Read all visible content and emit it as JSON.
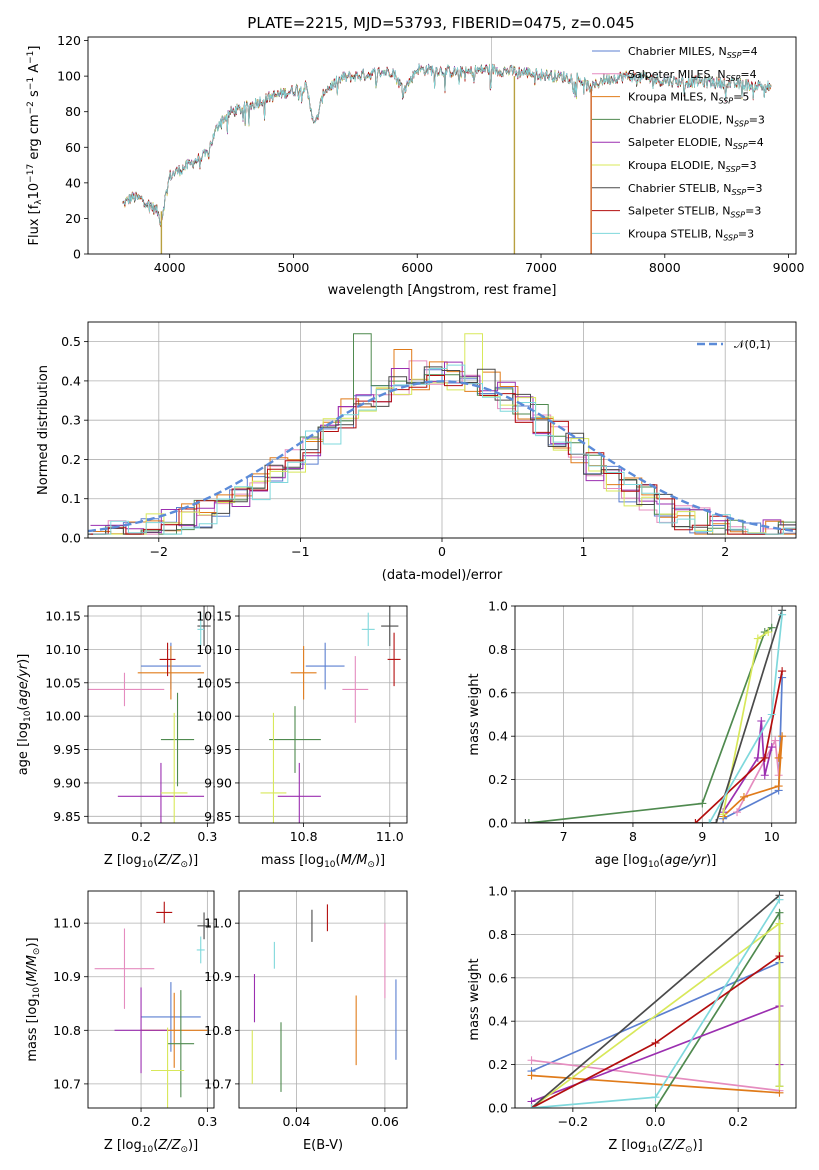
{
  "figure": {
    "title": "PLATE=2215, MJD=53793, FIBERID=0475, z=0.045"
  },
  "colors": {
    "series": [
      "#5b7fd0",
      "#e58cbf",
      "#e07b1a",
      "#4f8a4f",
      "#9b2fb0",
      "#d8e85a",
      "#4a4a4a",
      "#b30e0e",
      "#7fd8dc"
    ],
    "normal": "#5b8bd8",
    "grid": "#b0b0b0"
  },
  "legend_spectrum": [
    {
      "name": "Chabrier MILES, N",
      "sub": "SSP",
      "tail": "=4"
    },
    {
      "name": "Salpeter MILES, N",
      "sub": "SSP",
      "tail": "=4"
    },
    {
      "name": "Kroupa MILES, N",
      "sub": "SSP",
      "tail": "=5"
    },
    {
      "name": "Chabrier ELODIE, N",
      "sub": "SSP",
      "tail": "=3"
    },
    {
      "name": "Salpeter ELODIE, N",
      "sub": "SSP",
      "tail": "=4"
    },
    {
      "name": "Kroupa ELODIE, N",
      "sub": "SSP",
      "tail": "=3"
    },
    {
      "name": "Chabrier STELIB, N",
      "sub": "SSP",
      "tail": "=3"
    },
    {
      "name": "Salpeter STELIB, N",
      "sub": "SSP",
      "tail": "=3"
    },
    {
      "name": "Kroupa STELIB, N",
      "sub": "SSP",
      "tail": "=3"
    }
  ],
  "chart_data": [
    {
      "id": "spectrum",
      "type": "line",
      "xlabel": "wavelength [Angstrom, rest frame]",
      "ylabel": "Flux [f_λ 10^-17 erg cm^-2 s^-1 A^-1]",
      "xlim": [
        3340,
        9060
      ],
      "ylim": [
        0,
        122
      ],
      "xticks": [
        4000,
        5000,
        6000,
        7000,
        8000,
        9000
      ],
      "yticks": [
        0,
        20,
        40,
        60,
        80,
        100,
        120
      ],
      "grid": false,
      "legend": "upper right",
      "continuum": [
        [
          3620,
          28
        ],
        [
          3700,
          32
        ],
        [
          3800,
          30
        ],
        [
          3850,
          27
        ],
        [
          3900,
          24
        ],
        [
          3930,
          18
        ],
        [
          3960,
          30
        ],
        [
          4000,
          44
        ],
        [
          4100,
          48
        ],
        [
          4200,
          52
        ],
        [
          4300,
          56
        ],
        [
          4400,
          74
        ],
        [
          4500,
          80
        ],
        [
          4600,
          82
        ],
        [
          4700,
          85
        ],
        [
          4800,
          88
        ],
        [
          4900,
          90
        ],
        [
          5000,
          92
        ],
        [
          5100,
          94
        ],
        [
          5175,
          72
        ],
        [
          5250,
          92
        ],
        [
          5400,
          99
        ],
        [
          5600,
          101
        ],
        [
          5800,
          103
        ],
        [
          5890,
          92
        ],
        [
          6000,
          104
        ],
        [
          6200,
          103
        ],
        [
          6400,
          102
        ],
        [
          6563,
          104
        ],
        [
          6700,
          103
        ],
        [
          6900,
          102
        ],
        [
          7100,
          100
        ],
        [
          7300,
          99
        ],
        [
          7400,
          93
        ],
        [
          7500,
          98
        ],
        [
          7700,
          100
        ],
        [
          7900,
          98
        ],
        [
          8100,
          97
        ],
        [
          8300,
          97
        ],
        [
          8500,
          96
        ],
        [
          8700,
          95
        ],
        [
          8860,
          94
        ]
      ],
      "features": [
        {
          "x": 3933,
          "y": 0
        },
        {
          "x": 6785,
          "y": 0
        },
        {
          "x": 7405,
          "y": 0
        },
        {
          "x": 6600,
          "y": 122
        }
      ]
    },
    {
      "id": "residuals",
      "type": "histogram",
      "xlabel": "(data-model)/error",
      "ylabel": "Normed distribution",
      "xlim": [
        -2.5,
        2.5
      ],
      "ylim": [
        0,
        0.55
      ],
      "xticks": [
        -2,
        -1,
        0,
        1,
        2
      ],
      "yticks": [
        0.0,
        0.1,
        0.2,
        0.3,
        0.4,
        0.5
      ],
      "grid": true,
      "legend": "upper right",
      "legend_label": "𝒩(0,1)",
      "bins": 40,
      "outliers": [
        {
          "series": 3,
          "bin": 15,
          "value": 0.52
        },
        {
          "series": 5,
          "bin": 21,
          "value": 0.52
        },
        {
          "series": 2,
          "bin": 17,
          "value": 0.48
        }
      ]
    },
    {
      "id": "age-vs-Z",
      "type": "errorbar",
      "xlabel": "Z [log10(Z/Z⊙)]",
      "ylabel": "age  [log10(age/yr)]",
      "xlim": [
        0.12,
        0.31
      ],
      "ylim": [
        9.84,
        10.165
      ],
      "xticks": [
        0.2,
        0.3
      ],
      "yticks": [
        9.85,
        9.9,
        9.95,
        10.0,
        10.05,
        10.1,
        10.15
      ],
      "grid": true,
      "points": [
        {
          "s": 0,
          "x": 0.245,
          "y": 10.075,
          "ex": 0.045,
          "ey": 0.035
        },
        {
          "s": 1,
          "x": 0.175,
          "y": 10.04,
          "ex": 0.06,
          "ey": 0.025
        },
        {
          "s": 2,
          "x": 0.245,
          "y": 10.065,
          "ex": 0.05,
          "ey": 0.04
        },
        {
          "s": 3,
          "x": 0.255,
          "y": 9.965,
          "ex": 0.025,
          "ey": 0.07
        },
        {
          "s": 4,
          "x": 0.23,
          "y": 9.88,
          "ex": 0.065,
          "ey": 0.05
        },
        {
          "s": 5,
          "x": 0.25,
          "y": 9.885,
          "ex": 0.02,
          "ey": 0.12
        },
        {
          "s": 6,
          "x": 0.295,
          "y": 10.135,
          "ex": 0.01,
          "ey": 0.03
        },
        {
          "s": 7,
          "x": 0.24,
          "y": 10.085,
          "ex": 0.012,
          "ey": 0.025
        },
        {
          "s": 8,
          "x": 0.29,
          "y": 10.13,
          "ex": 0.005,
          "ey": 0.025
        }
      ]
    },
    {
      "id": "age-vs-mass",
      "type": "errorbar",
      "xlabel": "mass [log10(M/M⊙)]",
      "ylabel": "",
      "xlim": [
        10.65,
        11.04
      ],
      "ylim": [
        9.84,
        10.165
      ],
      "xticks": [
        10.8,
        11.0
      ],
      "yticks": [
        9.85,
        9.9,
        9.95,
        10.0,
        10.05,
        10.1,
        10.15
      ],
      "grid": true,
      "points": [
        {
          "s": 0,
          "x": 10.85,
          "y": 10.075,
          "ex": 0.045,
          "ey": 0.035
        },
        {
          "s": 1,
          "x": 10.92,
          "y": 10.04,
          "ex": 0.03,
          "ey": 0.05
        },
        {
          "s": 2,
          "x": 10.8,
          "y": 10.065,
          "ex": 0.03,
          "ey": 0.04
        },
        {
          "s": 3,
          "x": 10.78,
          "y": 9.965,
          "ex": 0.06,
          "ey": 0.05
        },
        {
          "s": 4,
          "x": 10.79,
          "y": 9.88,
          "ex": 0.05,
          "ey": 0.05
        },
        {
          "s": 5,
          "x": 10.73,
          "y": 9.885,
          "ex": 0.03,
          "ey": 0.12
        },
        {
          "s": 6,
          "x": 11.0,
          "y": 10.135,
          "ex": 0.02,
          "ey": 0.03
        },
        {
          "s": 7,
          "x": 11.01,
          "y": 10.085,
          "ex": 0.015,
          "ey": 0.04
        },
        {
          "s": 8,
          "x": 10.95,
          "y": 10.13,
          "ex": 0.015,
          "ey": 0.025
        }
      ]
    },
    {
      "id": "mass-weight-vs-age",
      "type": "line",
      "xlabel": "age  [log10(age/yr)]",
      "ylabel": "mass weight",
      "xlim": [
        6.3,
        10.35
      ],
      "ylim": [
        0,
        1.0
      ],
      "xticks": [
        7,
        8,
        9,
        10
      ],
      "yticks": [
        0.0,
        0.2,
        0.4,
        0.6,
        0.8,
        1.0
      ],
      "grid": true,
      "series": [
        {
          "s": 0,
          "x": [
            9.3,
            10.1,
            10.15
          ],
          "y": [
            0.02,
            0.15,
            0.67
          ]
        },
        {
          "s": 1,
          "x": [
            9.5,
            10.05,
            10.1
          ],
          "y": [
            0.05,
            0.38,
            0.22
          ]
        },
        {
          "s": 2,
          "x": [
            9.3,
            9.6,
            10.1,
            10.15,
            10.1
          ],
          "y": [
            0.03,
            0.12,
            0.17,
            0.4,
            0.3
          ]
        },
        {
          "s": 3,
          "x": [
            6.5,
            9.0,
            9.9,
            10.0
          ],
          "y": [
            0.0,
            0.09,
            0.88,
            0.9
          ]
        },
        {
          "s": 4,
          "x": [
            9.3,
            9.8,
            9.85,
            9.9,
            10.0
          ],
          "y": [
            0.05,
            0.3,
            0.47,
            0.22,
            0.35
          ]
        },
        {
          "s": 5,
          "x": [
            9.3,
            9.8,
            9.95
          ],
          "y": [
            0.04,
            0.85,
            0.88
          ]
        },
        {
          "s": 6,
          "x": [
            6.45,
            9.2,
            10.15
          ],
          "y": [
            0.0,
            0.0,
            0.98
          ]
        },
        {
          "s": 7,
          "x": [
            8.9,
            9.9,
            10.15
          ],
          "y": [
            0.0,
            0.3,
            0.7
          ]
        },
        {
          "s": 8,
          "x": [
            9.1,
            10.0,
            10.15
          ],
          "y": [
            0.0,
            0.5,
            0.96
          ]
        }
      ]
    },
    {
      "id": "mass-vs-Z",
      "type": "errorbar",
      "xlabel": "Z [log10(Z/Z⊙)]",
      "ylabel": "mass [log10(M/M⊙)]",
      "xlim": [
        0.12,
        0.31
      ],
      "ylim": [
        10.655,
        11.06
      ],
      "xticks": [
        0.2,
        0.3
      ],
      "yticks": [
        10.7,
        10.8,
        10.9,
        11.0
      ],
      "grid": true,
      "points": [
        {
          "s": 0,
          "x": 0.245,
          "y": 10.825,
          "ex": 0.045,
          "ey": 0.065
        },
        {
          "s": 1,
          "x": 0.175,
          "y": 10.915,
          "ex": 0.045,
          "ey": 0.075
        },
        {
          "s": 2,
          "x": 0.25,
          "y": 10.8,
          "ex": 0.05,
          "ey": 0.07
        },
        {
          "s": 3,
          "x": 0.26,
          "y": 10.775,
          "ex": 0.02,
          "ey": 0.1
        },
        {
          "s": 4,
          "x": 0.2,
          "y": 10.8,
          "ex": 0.04,
          "ey": 0.08
        },
        {
          "s": 5,
          "x": 0.24,
          "y": 10.725,
          "ex": 0.025,
          "ey": 0.08
        },
        {
          "s": 6,
          "x": 0.295,
          "y": 10.995,
          "ex": 0.01,
          "ey": 0.025
        },
        {
          "s": 7,
          "x": 0.235,
          "y": 11.02,
          "ex": 0.012,
          "ey": 0.02
        },
        {
          "s": 8,
          "x": 0.29,
          "y": 10.95,
          "ex": 0.006,
          "ey": 0.025
        }
      ]
    },
    {
      "id": "mass-vs-ebv",
      "type": "errorbar",
      "xlabel": "E(B-V)",
      "ylabel": "",
      "xlim": [
        0.027,
        0.065
      ],
      "ylim": [
        10.655,
        11.06
      ],
      "xticks": [
        0.04,
        0.06
      ],
      "yticks": [
        10.7,
        10.8,
        10.9,
        11.0
      ],
      "grid": true,
      "points": [
        {
          "s": 0,
          "x": 0.0625,
          "y": 10.82,
          "ex": 0,
          "ey": 0.075
        },
        {
          "s": 1,
          "x": 0.06,
          "y": 10.93,
          "ex": 0,
          "ey": 0.07
        },
        {
          "s": 2,
          "x": 0.0535,
          "y": 10.8,
          "ex": 0,
          "ey": 0.065
        },
        {
          "s": 3,
          "x": 0.0365,
          "y": 10.75,
          "ex": 0,
          "ey": 0.065
        },
        {
          "s": 4,
          "x": 0.0305,
          "y": 10.86,
          "ex": 0,
          "ey": 0.045
        },
        {
          "s": 5,
          "x": 0.03,
          "y": 10.75,
          "ex": 0,
          "ey": 0.05
        },
        {
          "s": 6,
          "x": 0.0435,
          "y": 10.995,
          "ex": 0,
          "ey": 0.03
        },
        {
          "s": 7,
          "x": 0.047,
          "y": 11.01,
          "ex": 0,
          "ey": 0.025
        },
        {
          "s": 8,
          "x": 0.035,
          "y": 10.94,
          "ex": 0,
          "ey": 0.025
        }
      ]
    },
    {
      "id": "mass-weight-vs-Z",
      "type": "line",
      "xlabel": "Z [log10(Z/Z⊙)]",
      "ylabel": "mass weight",
      "xlim": [
        -0.34,
        0.34
      ],
      "ylim": [
        0,
        1.0
      ],
      "xticks": [
        -0.2,
        0.0,
        0.2
      ],
      "yticks": [
        0.0,
        0.2,
        0.4,
        0.6,
        0.8,
        1.0
      ],
      "grid": true,
      "series": [
        {
          "s": 0,
          "x": [
            -0.3,
            0.3
          ],
          "y": [
            0.17,
            0.67
          ]
        },
        {
          "s": 1,
          "x": [
            -0.3,
            0.3
          ],
          "y": [
            0.22,
            0.08
          ]
        },
        {
          "s": 2,
          "x": [
            -0.3,
            0.3
          ],
          "y": [
            0.15,
            0.07
          ]
        },
        {
          "s": 3,
          "x": [
            0.0,
            0.3,
            0.3
          ],
          "y": [
            0.0,
            0.9,
            0.1
          ]
        },
        {
          "s": 4,
          "x": [
            -0.3,
            0.3,
            0.3
          ],
          "y": [
            0.03,
            0.47,
            0.2
          ]
        },
        {
          "s": 5,
          "x": [
            -0.3,
            0.3,
            0.3
          ],
          "y": [
            0.0,
            0.85,
            0.1
          ]
        },
        {
          "s": 6,
          "x": [
            -0.3,
            0.3
          ],
          "y": [
            0.0,
            0.98
          ]
        },
        {
          "s": 7,
          "x": [
            -0.3,
            0.0,
            0.3
          ],
          "y": [
            0.0,
            0.3,
            0.7
          ]
        },
        {
          "s": 8,
          "x": [
            -0.3,
            0.0,
            0.3
          ],
          "y": [
            0.0,
            0.05,
            0.96
          ]
        }
      ]
    }
  ]
}
